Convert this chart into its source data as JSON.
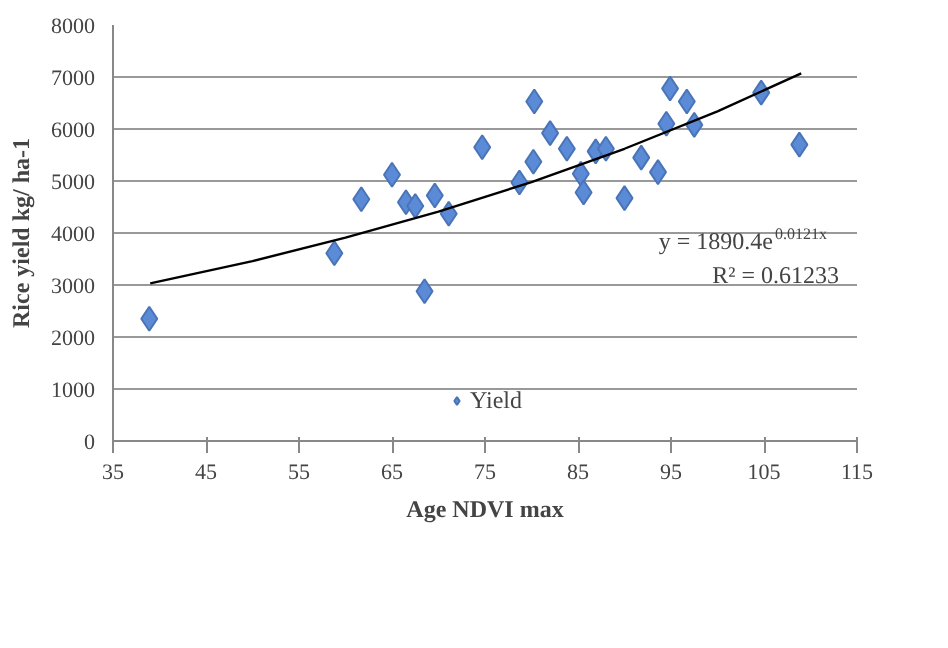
{
  "chart_data": {
    "type": "scatter",
    "xlabel": "Age NDVI max",
    "ylabel": "Rice yield kg/ ha-1",
    "xlim": [
      35,
      115
    ],
    "xticks": [
      35,
      45,
      55,
      65,
      75,
      85,
      95,
      105,
      115
    ],
    "ylim": [
      0,
      8000
    ],
    "yticks": [
      0,
      1000,
      2000,
      3000,
      4000,
      5000,
      6000,
      7000,
      8000
    ],
    "grid": "y",
    "legend": "bottom",
    "series": [
      {
        "name": "Yield",
        "marker": "diamond",
        "color": "#5b8bd6",
        "x": [
          38.9,
          58.8,
          61.7,
          65.0,
          66.5,
          67.5,
          68.5,
          69.6,
          71.1,
          74.7,
          78.7,
          80.2,
          80.3,
          82.0,
          83.8,
          85.3,
          85.6,
          86.9,
          88.0,
          90.0,
          91.8,
          93.6,
          94.5,
          94.9,
          96.7,
          97.5,
          104.7,
          108.8
        ],
        "values": [
          2350,
          3610,
          4650,
          5120,
          4590,
          4520,
          2880,
          4720,
          4370,
          5650,
          4970,
          5370,
          6530,
          5920,
          5620,
          5140,
          4780,
          5570,
          5620,
          4670,
          5450,
          5170,
          6100,
          6780,
          6530,
          6080,
          6700,
          5700
        ]
      },
      {
        "type": "line",
        "color": "#000000",
        "x": [
          39,
          50,
          60,
          70,
          80,
          90,
          100,
          109
        ],
        "values": [
          3030,
          3460,
          3910,
          4410,
          4980,
          5620,
          6340,
          7070
        ]
      }
    ],
    "annotations": [
      "y = 1890.4e$^{0.0121x}$",
      "R² = 0.61233"
    ]
  }
}
